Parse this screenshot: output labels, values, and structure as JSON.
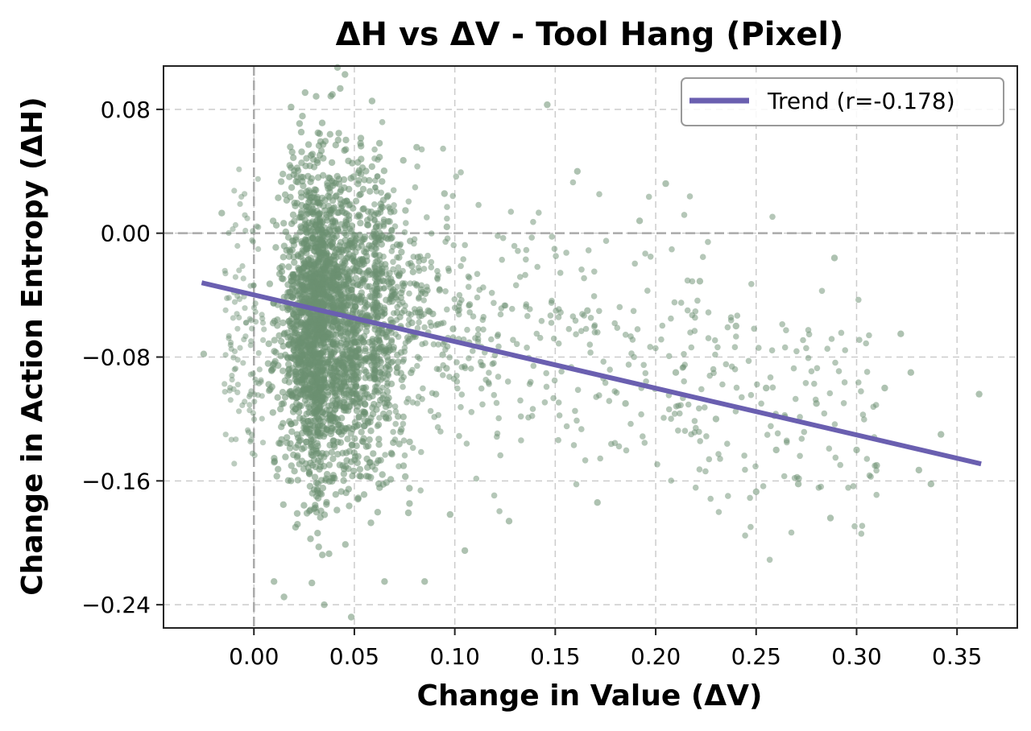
{
  "chart_data": {
    "type": "scatter",
    "title": "ΔH vs ΔV - Tool Hang (Pixel)",
    "xlabel": "Change in Value (ΔV)",
    "ylabel": "Change in Action Entropy (ΔH)",
    "xlim": [
      -0.045,
      0.38
    ],
    "ylim": [
      -0.255,
      0.108
    ],
    "xticks": [
      0.0,
      0.05,
      0.1,
      0.15,
      0.2,
      0.25,
      0.3,
      0.35
    ],
    "xtick_labels": [
      "0.00",
      "0.05",
      "0.10",
      "0.15",
      "0.20",
      "0.25",
      "0.30",
      "0.35"
    ],
    "yticks": [
      0.08,
      0.0,
      -0.08,
      -0.16,
      -0.24
    ],
    "ytick_labels": [
      "0.08",
      "0.00",
      "−0.08",
      "−0.16",
      "−0.24"
    ],
    "grid": true,
    "reference_lines": {
      "x": 0,
      "y": 0
    },
    "legend": {
      "placement": "top-right",
      "entries": [
        "Trend (r=-0.178)"
      ]
    },
    "colors": {
      "points": "#6b8f71",
      "trend": "#6a5fb0",
      "grid": "#cccccc",
      "reference": "#aaaaaa"
    },
    "trend": {
      "name": "Trend (r=-0.178)",
      "x": [
        -0.026,
        0.362
      ],
      "y": [
        -0.032,
        -0.149
      ]
    },
    "scatter_summary": {
      "core_x_range": [
        0.005,
        0.075
      ],
      "core_y_range": [
        -0.19,
        0.06
      ],
      "x_center": 0.035,
      "y_center": -0.06
    },
    "scatter_outliers": [
      [
        -0.016,
        0.013
      ],
      [
        -0.025,
        -0.078
      ],
      [
        0.01,
        -0.225
      ],
      [
        0.015,
        -0.235
      ],
      [
        0.035,
        -0.24
      ],
      [
        0.065,
        -0.225
      ],
      [
        0.085,
        -0.225
      ],
      [
        0.105,
        -0.205
      ],
      [
        0.127,
        -0.186
      ],
      [
        0.146,
        0.083
      ],
      [
        0.161,
        0.04
      ],
      [
        0.166,
        -0.05
      ],
      [
        0.171,
        -0.174
      ],
      [
        0.185,
        -0.11
      ],
      [
        0.192,
        0.008
      ],
      [
        0.205,
        0.032
      ],
      [
        0.21,
        -0.09
      ],
      [
        0.222,
        -0.031
      ],
      [
        0.23,
        -0.12
      ],
      [
        0.24,
        -0.06
      ],
      [
        0.25,
        -0.167
      ],
      [
        0.255,
        -0.1
      ],
      [
        0.26,
        -0.14
      ],
      [
        0.271,
        -0.162
      ],
      [
        0.28,
        -0.11
      ],
      [
        0.287,
        -0.184
      ],
      [
        0.289,
        -0.016
      ],
      [
        0.3,
        -0.14
      ],
      [
        0.31,
        -0.15
      ],
      [
        0.314,
        -0.1
      ],
      [
        0.322,
        -0.065
      ],
      [
        0.327,
        -0.09
      ],
      [
        0.331,
        -0.153
      ],
      [
        0.337,
        -0.162
      ],
      [
        0.342,
        -0.13
      ],
      [
        0.361,
        -0.104
      ]
    ]
  }
}
